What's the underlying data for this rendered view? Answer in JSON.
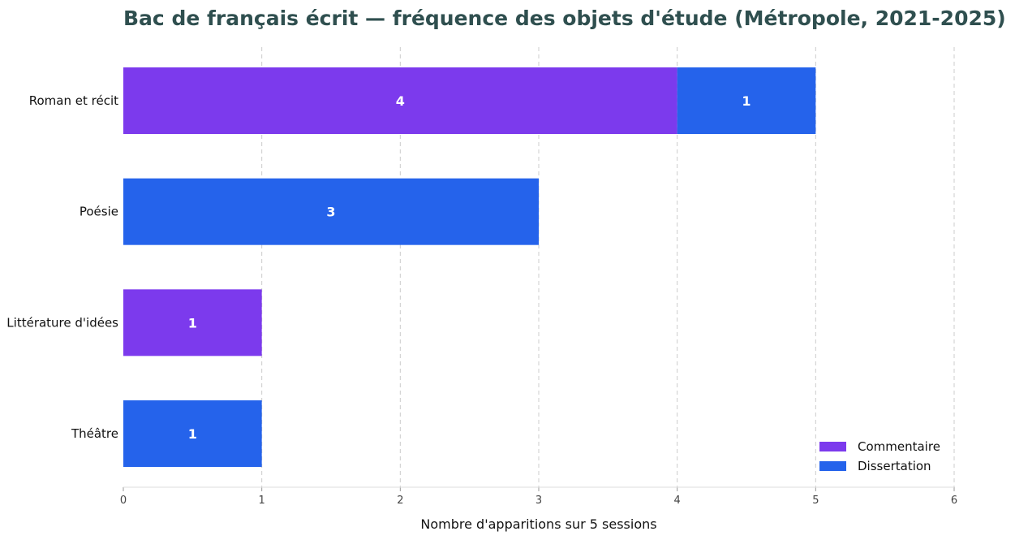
{
  "chart_data": {
    "type": "bar",
    "orientation": "horizontal",
    "stacked": true,
    "title": "Bac de français écrit — fréquence des objets d'étude (Métropole, 2021-2025)",
    "xlabel": "Nombre d'apparitions sur 5 sessions",
    "ylabel": "",
    "categories": [
      "Roman et récit",
      "Poésie",
      "Littérature d'idées",
      "Théâtre"
    ],
    "series": [
      {
        "name": "Commentaire",
        "color": "#7c3aed",
        "values": [
          4,
          0,
          1,
          0
        ]
      },
      {
        "name": "Dissertation",
        "color": "#2563eb",
        "values": [
          1,
          3,
          0,
          1
        ]
      }
    ],
    "xlim": [
      0,
      6
    ],
    "xticks": [
      "0",
      "1",
      "2",
      "3",
      "4",
      "5",
      "6"
    ],
    "grid": "vertical dashed",
    "legend_position": "bottom-right",
    "colors": {
      "title": "#2f4f4f",
      "grid": "#cccccc",
      "axis": "#dddddd",
      "bar_label": "#ffffff"
    }
  }
}
